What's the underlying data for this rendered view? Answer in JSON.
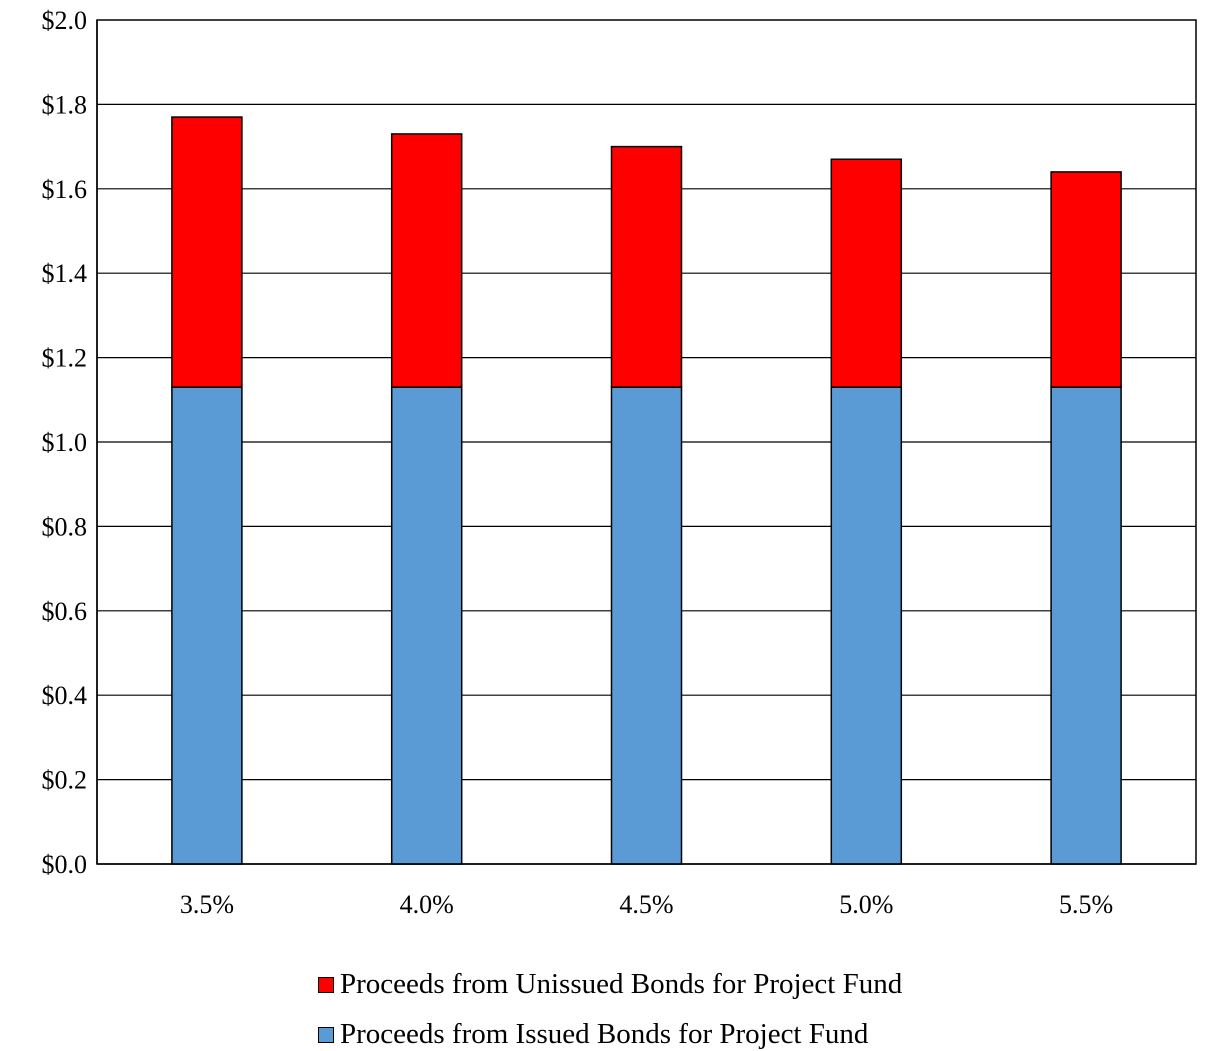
{
  "chart_data": {
    "type": "bar",
    "stacked": true,
    "categories": [
      "3.5%",
      "4.0%",
      "4.5%",
      "5.0%",
      "5.5%"
    ],
    "series": [
      {
        "name": "Proceeds from Issued Bonds for Project Fund",
        "color": "#5b9bd5",
        "values": [
          1.13,
          1.13,
          1.13,
          1.13,
          1.13
        ]
      },
      {
        "name": "Proceeds from Unissued Bonds for Project Fund",
        "color": "#ff0000",
        "values": [
          0.64,
          0.6,
          0.57,
          0.54,
          0.51
        ]
      }
    ],
    "ylim": [
      0,
      2.0
    ],
    "yticks": [
      "$0.0",
      "$0.2",
      "$0.4",
      "$0.6",
      "$0.8",
      "$1.0",
      "$1.2",
      "$1.4",
      "$1.6",
      "$1.8",
      "$2.0"
    ],
    "grid": true,
    "legend_position": "bottom",
    "legend_order": [
      "Proceeds from Unissued Bonds for Project Fund",
      "Proceeds from Issued Bonds for Project Fund"
    ]
  }
}
